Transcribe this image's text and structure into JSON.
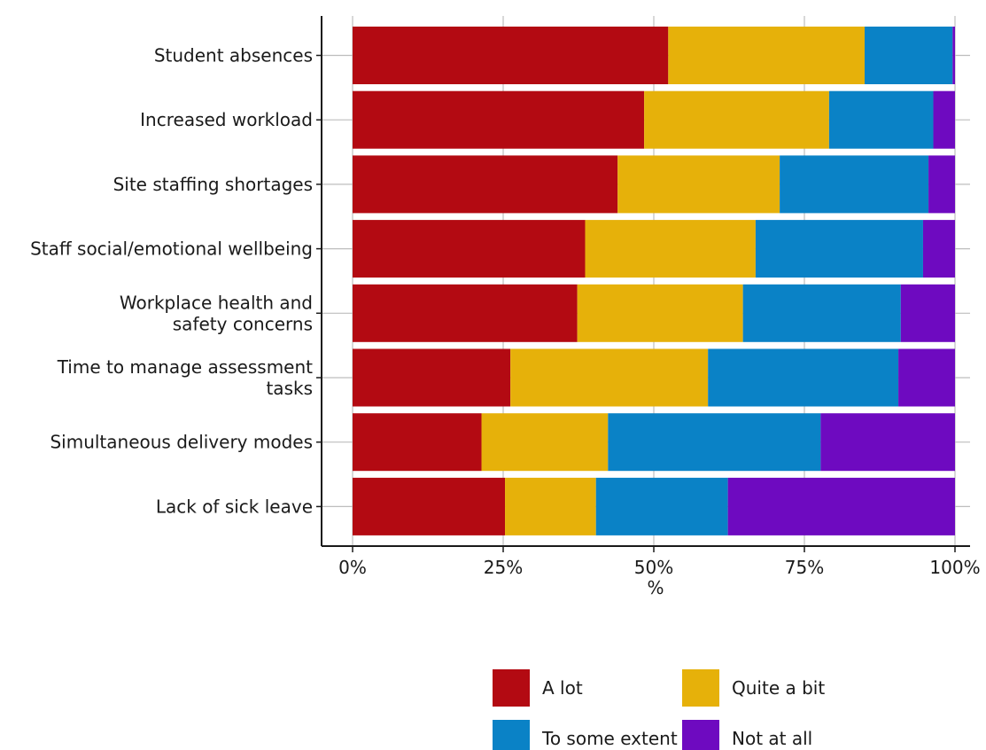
{
  "chart_data": {
    "type": "bar",
    "orientation": "horizontal",
    "stacked": "percent",
    "categories": [
      "Student absences",
      "Increased workload",
      "Site staffing shortages",
      "Staff social/emotional wellbeing",
      "Workplace health and safety concerns",
      "Time to manage assessment tasks",
      "Simultaneous delivery modes",
      "Lack of sick leave"
    ],
    "category_lines": [
      [
        "Student absences"
      ],
      [
        "Increased workload"
      ],
      [
        "Site staffing shortages"
      ],
      [
        "Staff social/emotional wellbeing"
      ],
      [
        "Workplace health and",
        "safety concerns"
      ],
      [
        "Time to manage assessment",
        "tasks"
      ],
      [
        "Simultaneous delivery modes"
      ],
      [
        "Lack of sick leave"
      ]
    ],
    "series": [
      {
        "name": "A lot",
        "color": "#B30A12",
        "values": [
          52.4,
          48.4,
          44.0,
          38.6,
          37.3,
          26.2,
          21.4,
          25.3
        ]
      },
      {
        "name": "Quite a bit",
        "color": "#E6B10A",
        "values": [
          32.6,
          30.7,
          26.9,
          28.3,
          27.5,
          32.8,
          21.0,
          15.1
        ]
      },
      {
        "name": "To some extent",
        "color": "#0A82C6",
        "values": [
          14.6,
          17.3,
          24.7,
          27.8,
          26.2,
          31.6,
          35.3,
          21.9
        ]
      },
      {
        "name": "Not at all",
        "color": "#6E0AC0",
        "values": [
          0.4,
          3.6,
          4.4,
          5.3,
          9.0,
          9.4,
          22.3,
          37.7
        ]
      }
    ],
    "x_ticks": [
      "0%",
      "25%",
      "50%",
      "75%",
      "100%"
    ],
    "x_tick_values": [
      0,
      25,
      50,
      75,
      100
    ],
    "xlim": [
      0,
      100
    ],
    "xlabel": "%",
    "ylabel": "",
    "grid": true,
    "legend_position": "bottom"
  }
}
